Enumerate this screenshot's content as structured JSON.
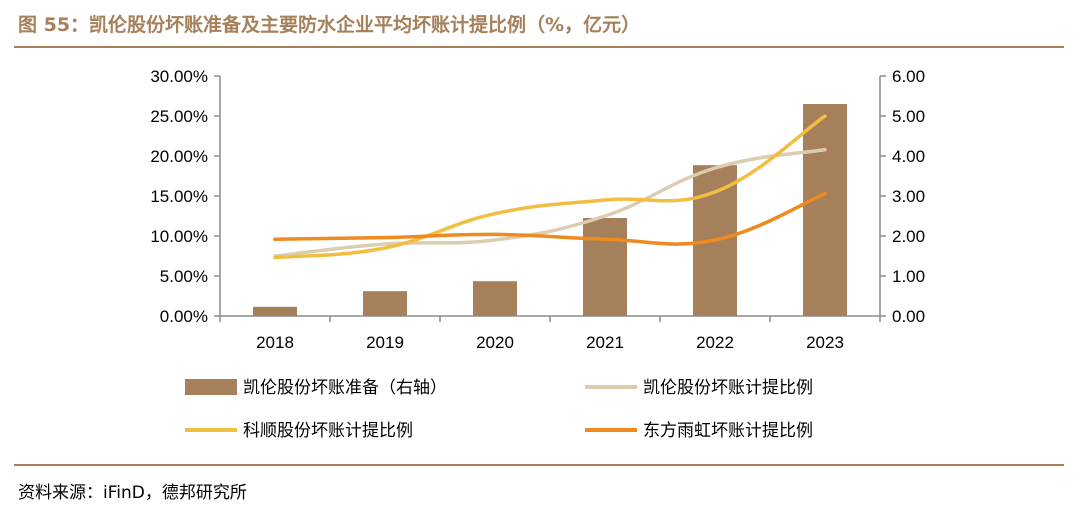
{
  "header": {
    "title": "图 55：凯伦股份坏账准备及主要防水企业平均坏账计提比例（%，亿元）"
  },
  "footer": {
    "source": "资料来源：iFinD，德邦研究所"
  },
  "colors": {
    "bar": "#a5805a",
    "keshun": "#f2be42",
    "dongfang": "#ee8a1f",
    "kailun_line": "#dccdb0",
    "title": "#a5805a",
    "axis": "#8c8c8c"
  },
  "chart_data": {
    "type": "bar+line",
    "categories": [
      "2018",
      "2019",
      "2020",
      "2021",
      "2022",
      "2023"
    ],
    "left_axis": {
      "min": 0,
      "max": 0.3,
      "step": 0.05,
      "tick_labels": [
        "0.00%",
        "5.00%",
        "10.00%",
        "15.00%",
        "20.00%",
        "25.00%",
        "30.00%"
      ]
    },
    "right_axis": {
      "min": 0,
      "max": 6,
      "step": 1,
      "tick_labels": [
        "0.00",
        "1.00",
        "2.00",
        "3.00",
        "4.00",
        "5.00",
        "6.00"
      ]
    },
    "grid": false,
    "legend_position": "bottom",
    "series": [
      {
        "name": "凯伦股份坏账准备（右轴）",
        "kind": "bar",
        "axis": "right",
        "values": [
          0.23,
          0.62,
          0.87,
          2.45,
          3.77,
          5.3
        ]
      },
      {
        "name": "凯伦股份坏账计提比例",
        "kind": "line",
        "axis": "left",
        "values": [
          0.075,
          0.09,
          0.095,
          0.125,
          0.185,
          0.208
        ]
      },
      {
        "name": "科顺股份坏账计提比例",
        "kind": "line",
        "axis": "left",
        "values": [
          0.073,
          0.085,
          0.128,
          0.145,
          0.155,
          0.25
        ]
      },
      {
        "name": "东方雨虹坏账计提比例",
        "kind": "line",
        "axis": "left",
        "values": [
          0.096,
          0.098,
          0.102,
          0.096,
          0.095,
          0.153
        ]
      }
    ]
  }
}
